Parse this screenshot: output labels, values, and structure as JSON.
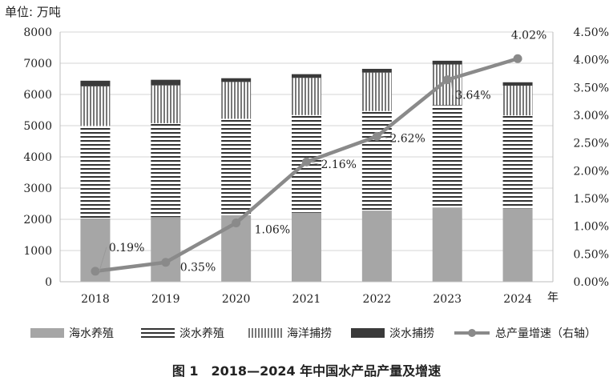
{
  "chart_data": {
    "type": "bar",
    "stacked": true,
    "caption": "图 1　2018—2024 年中国水产品产量及增速",
    "y_unit_label": "单位: 万吨",
    "x_unit_label": "年",
    "categories": [
      "2018",
      "2019",
      "2020",
      "2021",
      "2022",
      "2023",
      "2024"
    ],
    "ylim": [
      0,
      8000
    ],
    "y_ticks": [
      "0",
      "1000",
      "2000",
      "3000",
      "4000",
      "5000",
      "6000",
      "7000",
      "8000"
    ],
    "y2lim": [
      0,
      4.5
    ],
    "y2_ticks": [
      "0.00%",
      "0.50%",
      "1.00%",
      "1.50%",
      "2.00%",
      "2.50%",
      "3.00%",
      "3.50%",
      "4.00%",
      "4.50%"
    ],
    "grid": true,
    "legend_position": "bottom",
    "series": [
      {
        "name": "海水养殖",
        "kind": "bar",
        "color": "#a6a6a6",
        "values": [
          2030,
          2070,
          2130,
          2210,
          2280,
          2380,
          2350
        ]
      },
      {
        "name": "淡水养殖",
        "kind": "bar",
        "color": "#333333",
        "values": [
          2960,
          3010,
          3090,
          3130,
          3190,
          3280,
          2980
        ]
      },
      {
        "name": "海洋捕捞",
        "kind": "bar",
        "color": "#777777",
        "values": [
          1270,
          1210,
          1180,
          1190,
          1230,
          1300,
          950
        ]
      },
      {
        "name": "淡水捕捞",
        "kind": "bar",
        "color": "#3a3a3a",
        "values": [
          180,
          180,
          120,
          120,
          120,
          120,
          110
        ]
      },
      {
        "name": "总产量增速（右轴）",
        "kind": "line",
        "axis": "right",
        "color": "#8a8a8a",
        "values": [
          0.19,
          0.35,
          1.06,
          2.16,
          2.62,
          3.64,
          4.02
        ],
        "labels": [
          "0.19%",
          "0.35%",
          "1.06%",
          "2.16%",
          "2.62%",
          "3.64%",
          "4.02%"
        ]
      }
    ]
  }
}
